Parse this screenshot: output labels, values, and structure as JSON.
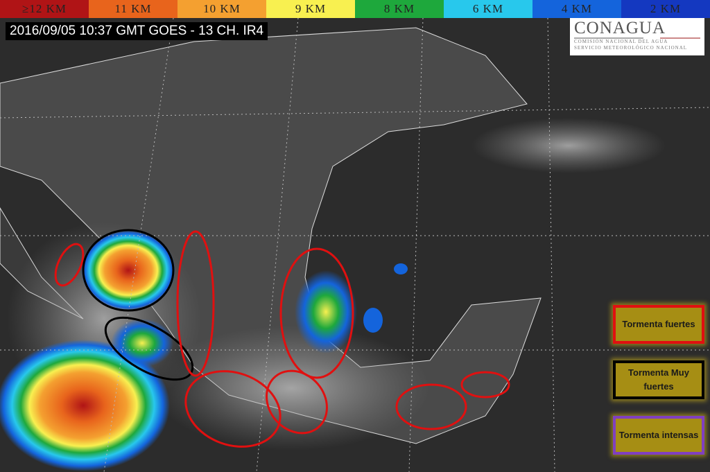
{
  "scale_bar": [
    {
      "label": "≥12 KM",
      "color": "#b01416"
    },
    {
      "label": "11 KM",
      "color": "#e8641c"
    },
    {
      "label": "10 KM",
      "color": "#f4a030"
    },
    {
      "label": "9 KM",
      "color": "#f8f050"
    },
    {
      "label": "8 KM",
      "color": "#1ea83c"
    },
    {
      "label": "6 KM",
      "color": "#28c8ec"
    },
    {
      "label": "4 KM",
      "color": "#1464dc"
    },
    {
      "label": "2 KM",
      "color": "#1438c0"
    }
  ],
  "timestamp": "2016/09/05 10:37 GMT GOES - 13 CH. IR4",
  "logo": {
    "name": "CONAGUA",
    "line1": "COMISIÓN NACIONAL DEL AGUA",
    "line2": "SERVICIO METEOROLÓGICO NACIONAL"
  },
  "legend": [
    {
      "label": "Tormenta fuertes",
      "color": "#e01010"
    },
    {
      "label": "Tormenta Muy fuertes",
      "color": "#000000"
    },
    {
      "label": "Tormenta intensas",
      "color": "#8040c0"
    }
  ]
}
